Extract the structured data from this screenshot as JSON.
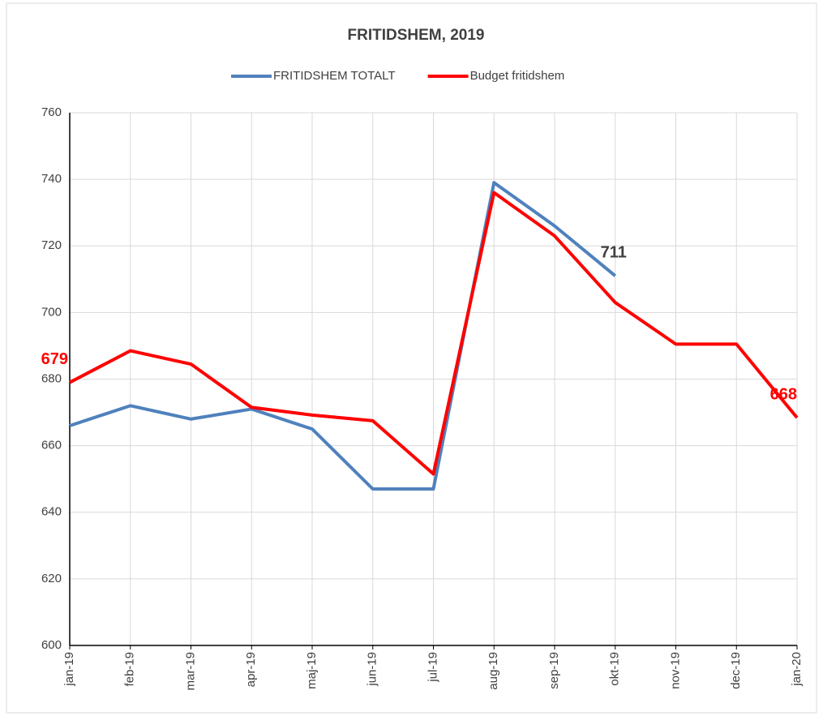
{
  "chart_data": {
    "type": "line",
    "title": "FRITIDSHEM, 2019",
    "categories": [
      "jan-19",
      "feb-19",
      "mar-19",
      "apr-19",
      "maj-19",
      "jun-19",
      "jul-19",
      "aug-19",
      "sep-19",
      "okt-19",
      "nov-19",
      "dec-19",
      "jan-20"
    ],
    "series": [
      {
        "name": "FRITIDSHEM TOTALT",
        "color": "#4f81bd",
        "values": [
          666,
          672,
          668,
          671,
          665,
          647,
          647,
          739,
          726,
          711,
          null,
          null,
          null
        ],
        "value_labels": [
          null,
          null,
          null,
          null,
          null,
          null,
          null,
          null,
          null,
          "711",
          null,
          null,
          null
        ],
        "label_color": "#404040"
      },
      {
        "name": "Budget fritidshem",
        "color": "#ff0000",
        "values": [
          679,
          688.5,
          684.5,
          671.5,
          669.2,
          667.5,
          651.5,
          736,
          723,
          703,
          690.5,
          690.5,
          668.4
        ],
        "value_labels": [
          "679",
          null,
          null,
          null,
          null,
          null,
          null,
          null,
          null,
          null,
          null,
          null,
          "668"
        ],
        "label_color": "#ff0000"
      }
    ],
    "ylim": [
      600,
      760
    ],
    "yticks": [
      600,
      620,
      640,
      660,
      680,
      700,
      720,
      740,
      760
    ],
    "grid": true,
    "legend": "top"
  }
}
